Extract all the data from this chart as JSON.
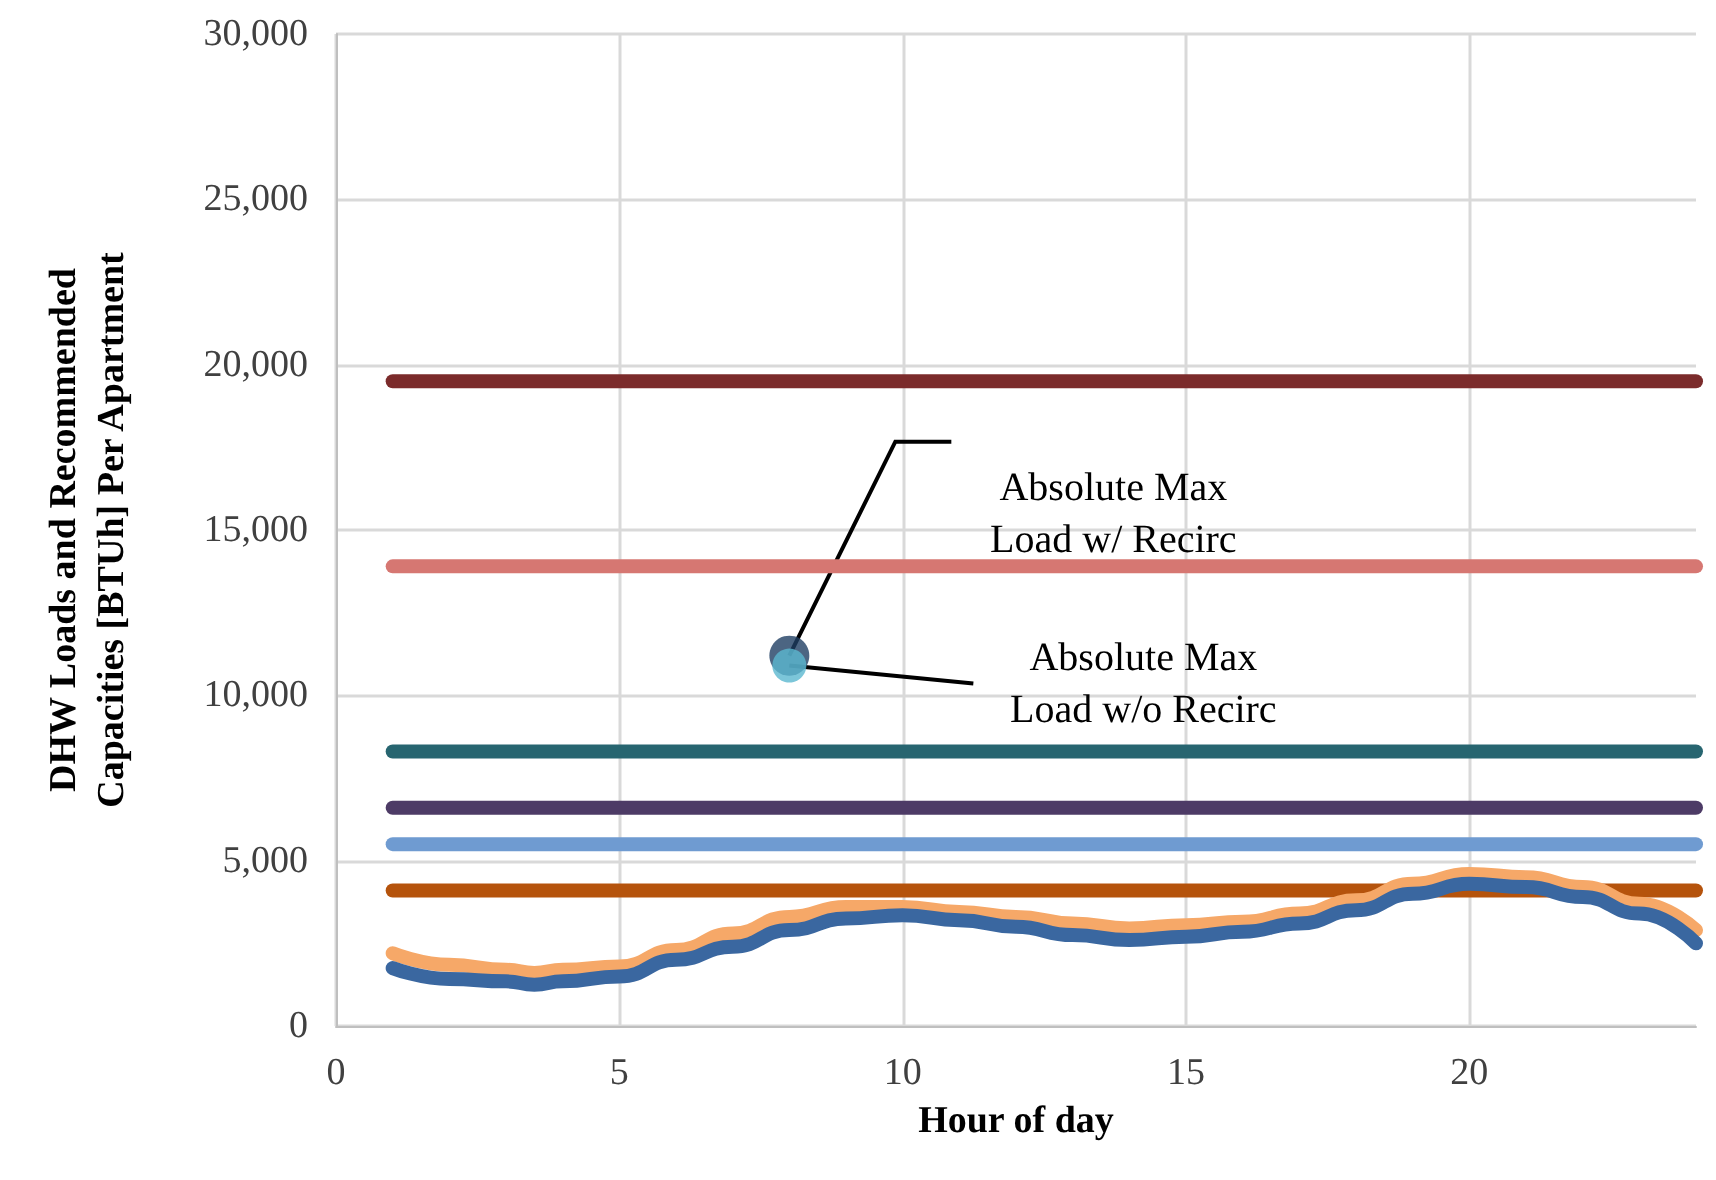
{
  "chart_data": {
    "type": "line",
    "xlabel": "Hour of day",
    "ylabel": "DHW Loads and Recommended Capacities [BTUh] Per Apartment",
    "xlim": [
      0,
      24
    ],
    "xticks": [
      0,
      5,
      10,
      15,
      20
    ],
    "ylim": [
      0,
      30000
    ],
    "yticks": [
      0,
      {
        "value": 5000,
        "label": "5,000"
      },
      {
        "value": 10000,
        "label": "10,000"
      },
      {
        "value": 15000,
        "label": "15,000"
      },
      {
        "value": 20000,
        "label": "20,000"
      },
      {
        "value": 25000,
        "label": "25,000"
      },
      {
        "value": 30000,
        "label": "30,000"
      }
    ],
    "grid": true,
    "marker": "none",
    "series": [
      {
        "color": "#7b2b2b",
        "x": [
          1,
          24
        ],
        "values": [
          19500,
          19500
        ]
      },
      {
        "color": "#d67772",
        "x": [
          1,
          24
        ],
        "values": [
          13900,
          13900
        ]
      },
      {
        "color": "#276570",
        "x": [
          1,
          24
        ],
        "values": [
          8300,
          8300
        ]
      },
      {
        "color": "#4d3b66",
        "x": [
          1,
          24
        ],
        "values": [
          6600,
          6600
        ]
      },
      {
        "color": "#6f9bd1",
        "x": [
          1,
          24
        ],
        "values": [
          5500,
          5500
        ]
      },
      {
        "color": "#b5530c",
        "x": [
          1,
          24
        ],
        "values": [
          4100,
          4100
        ]
      },
      {
        "color": "#f6a868",
        "x": [
          1,
          2,
          3,
          3.5,
          4,
          5,
          6,
          7,
          8,
          9,
          10,
          11,
          12,
          13,
          14,
          15,
          16,
          17,
          18,
          19,
          20,
          21,
          22,
          23,
          24
        ],
        "values": [
          2200,
          1850,
          1700,
          1600,
          1700,
          1800,
          2300,
          2800,
          3300,
          3600,
          3600,
          3450,
          3300,
          3100,
          2950,
          3050,
          3150,
          3400,
          3800,
          4300,
          4600,
          4500,
          4200,
          3700,
          2900
        ]
      },
      {
        "color": "#3a67a0",
        "x": [
          1,
          2,
          3,
          3.5,
          4,
          5,
          6,
          7,
          8,
          9,
          10,
          11,
          12,
          13,
          14,
          15,
          16,
          17,
          18,
          19,
          20,
          21,
          22,
          23,
          24
        ],
        "values": [
          1750,
          1420,
          1350,
          1250,
          1350,
          1500,
          2000,
          2400,
          2900,
          3250,
          3350,
          3200,
          3000,
          2750,
          2600,
          2700,
          2850,
          3100,
          3500,
          4000,
          4300,
          4200,
          3900,
          3400,
          2500
        ]
      },
      {
        "type": "scatter",
        "marker": "circle",
        "color": "#1f3f63",
        "x": [
          8
        ],
        "values": [
          11200
        ]
      },
      {
        "type": "scatter",
        "marker": "circle",
        "color": "#5bb8cf",
        "x": [
          8
        ],
        "values": [
          10900
        ]
      }
    ],
    "annotations": [
      {
        "text": "Absolute Max Load w/ Recirc",
        "x": 8,
        "y": 11200
      },
      {
        "text": "Absolute Max Load w/o Recirc",
        "x": 8,
        "y": 10900
      }
    ]
  }
}
